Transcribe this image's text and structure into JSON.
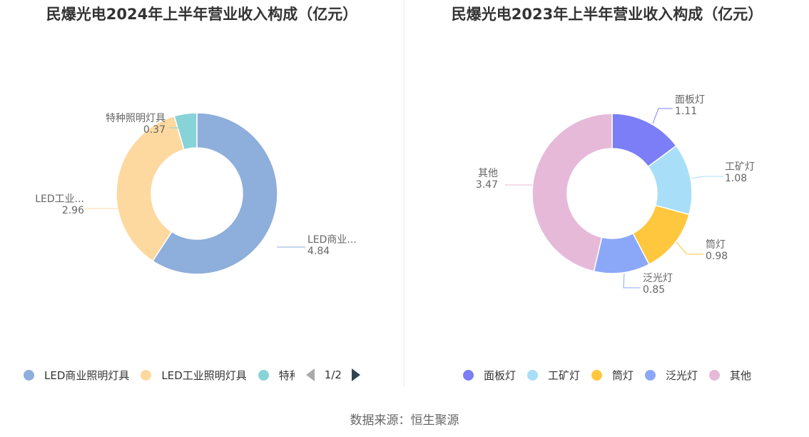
{
  "source_label": "数据来源：恒生聚源",
  "pager": {
    "text": "1/2"
  },
  "chart_data": [
    {
      "type": "pie",
      "donut": true,
      "title": "民爆光电2024年上半年营业收入构成（亿元）",
      "categories": [
        "LED商业照明灯具",
        "LED工业照明灯具",
        "特种照明灯具"
      ],
      "values": [
        4.84,
        2.96,
        0.37
      ],
      "labels": [
        "LED商业...",
        "LED工业...",
        "特种照明灯具"
      ],
      "colors": [
        "#8eaedb",
        "#fdd9a0",
        "#87d3d8"
      ],
      "legend": {
        "position": "bottom",
        "visible_text": [
          "LED商业照明灯具",
          "LED工业照明灯具",
          "特种照明灯具"
        ]
      }
    },
    {
      "type": "pie",
      "donut": true,
      "title": "民爆光电2023年上半年营业收入构成（亿元）",
      "categories": [
        "面板灯",
        "工矿灯",
        "筒灯",
        "泛光灯",
        "其他"
      ],
      "values": [
        1.11,
        1.08,
        0.98,
        0.85,
        3.47
      ],
      "labels": [
        "面板灯",
        "工矿灯",
        "筒灯",
        "泛光灯",
        "其他"
      ],
      "colors": [
        "#7b7ef6",
        "#a8def8",
        "#ffc73d",
        "#8ba8f8",
        "#e6b9d9"
      ],
      "legend": {
        "position": "bottom"
      }
    }
  ]
}
